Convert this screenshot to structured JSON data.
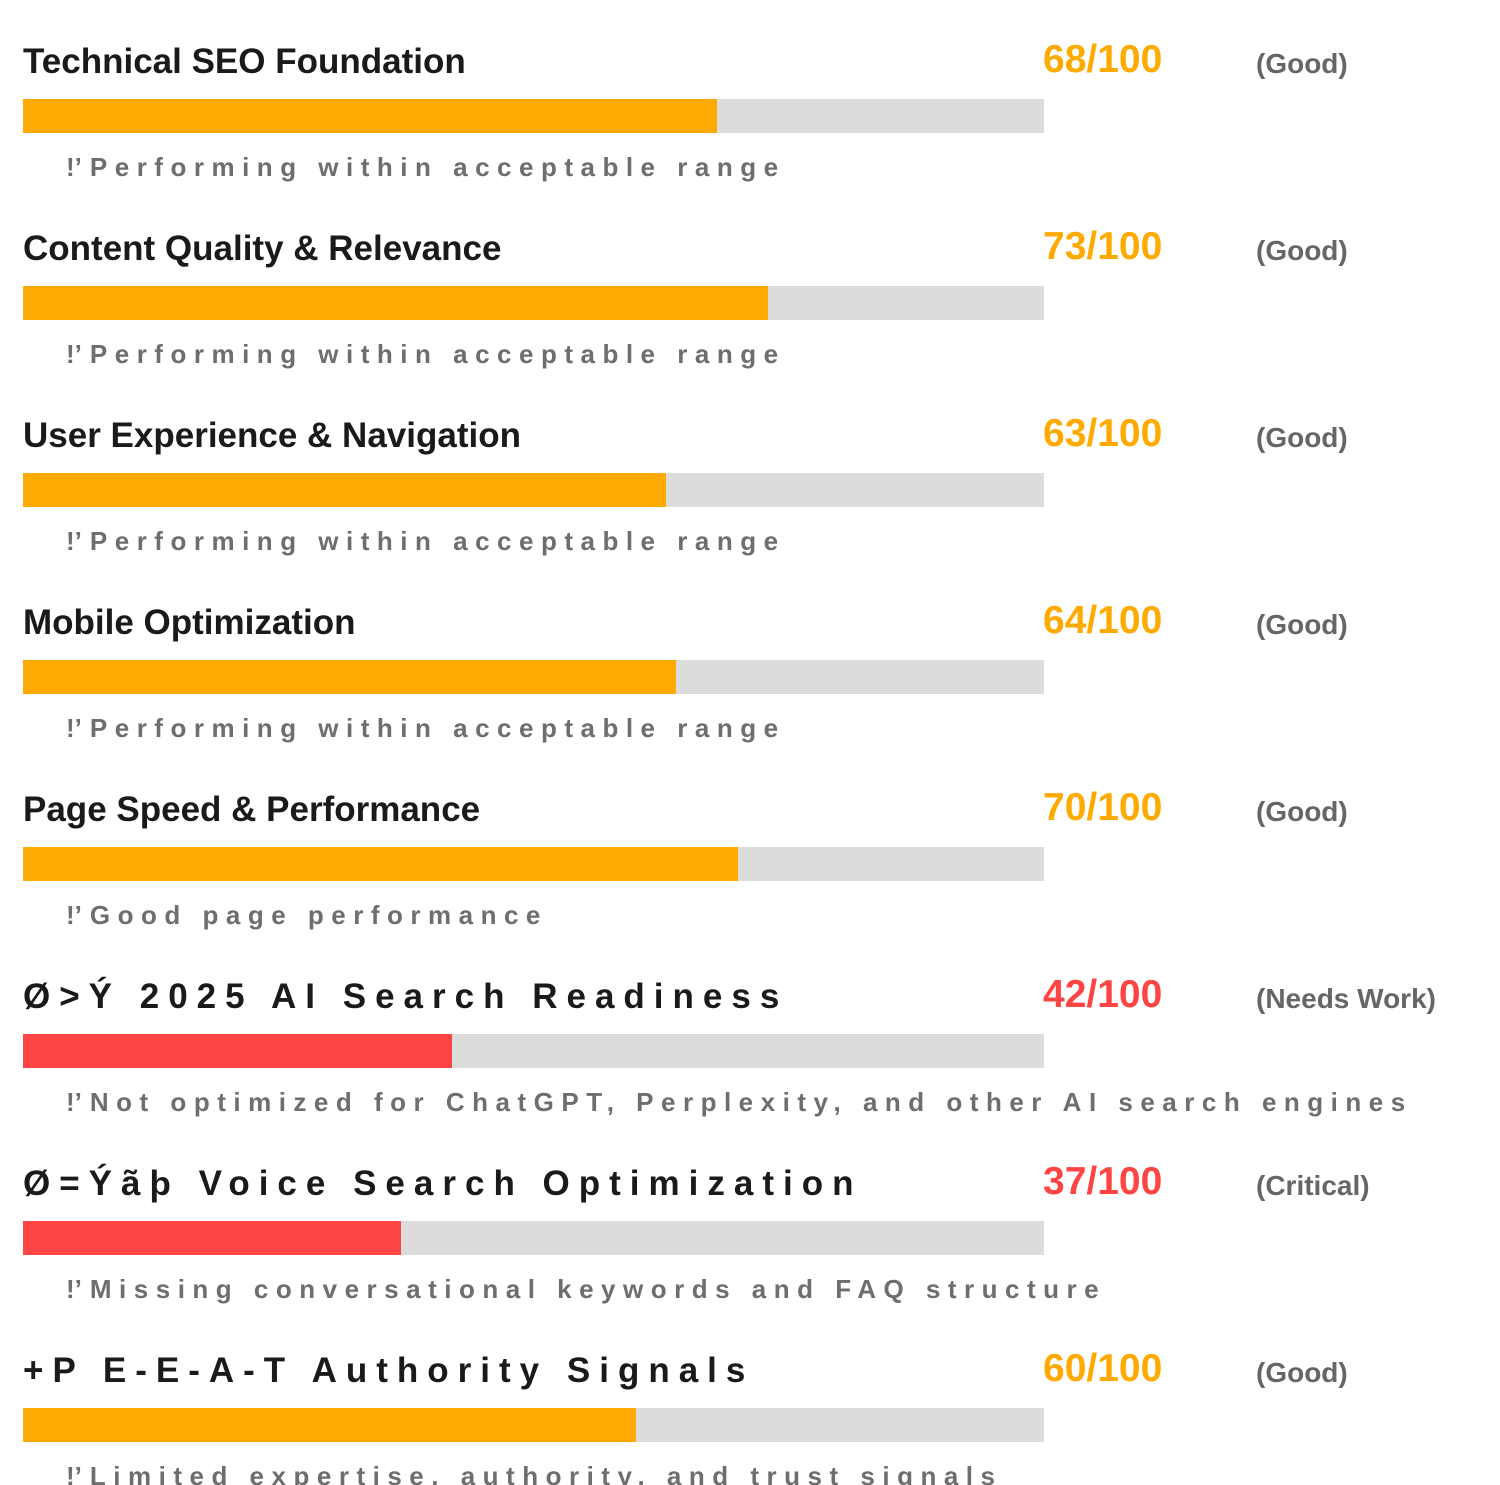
{
  "colors": {
    "good": "#ffaa00",
    "bad": "#ff4444",
    "track": "#dcdcdc"
  },
  "metrics": [
    {
      "title": "Technical SEO Foundation",
      "score_text": "68/100",
      "rating": "(Good)",
      "note_icon": "!’",
      "note": "Performing within acceptable range",
      "score": 68,
      "status": "good",
      "spaced": false
    },
    {
      "title": "Content Quality & Relevance",
      "score_text": "73/100",
      "rating": "(Good)",
      "note_icon": "!’",
      "note": "Performing within acceptable range",
      "score": 73,
      "status": "good",
      "spaced": false
    },
    {
      "title": "User Experience & Navigation",
      "score_text": "63/100",
      "rating": "(Good)",
      "note_icon": "!’",
      "note": "Performing within acceptable range",
      "score": 63,
      "status": "good",
      "spaced": false
    },
    {
      "title": "Mobile Optimization",
      "score_text": "64/100",
      "rating": "(Good)",
      "note_icon": "!’",
      "note": "Performing within acceptable range",
      "score": 64,
      "status": "good",
      "spaced": false
    },
    {
      "title": "Page Speed & Performance",
      "score_text": "70/100",
      "rating": "(Good)",
      "note_icon": "!’",
      "note": "Good page performance",
      "score": 70,
      "status": "good",
      "spaced": false
    },
    {
      "title": "Ø>Ý 2025 AI Search Readiness",
      "score_text": "42/100",
      "rating": "(Needs Work)",
      "note_icon": "!’",
      "note": "Not optimized for ChatGPT, Perplexity, and other AI search engines",
      "score": 42,
      "status": "bad",
      "spaced": true
    },
    {
      "title": "Ø=Ýãþ Voice Search Optimization",
      "score_text": "37/100",
      "rating": "(Critical)",
      "note_icon": "!’",
      "note": "Missing conversational keywords and FAQ structure",
      "score": 37,
      "status": "bad",
      "spaced": true
    },
    {
      "title": "+P E-E-A-T Authority Signals",
      "score_text": "60/100",
      "rating": "(Good)",
      "note_icon": "!’",
      "note": "Limited expertise, authority, and trust signals",
      "score": 60,
      "status": "good",
      "spaced": true
    }
  ]
}
